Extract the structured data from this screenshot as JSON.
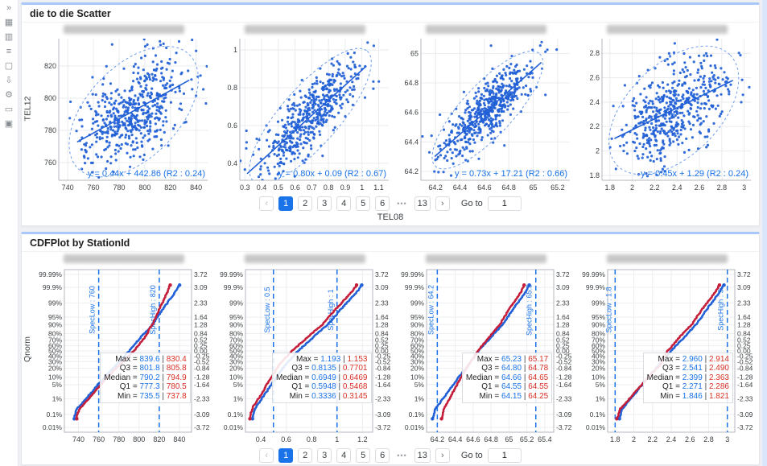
{
  "sidebar": {
    "icons": [
      {
        "name": "collapse-sidebar-icon",
        "glyph": "»"
      },
      {
        "name": "image-icon",
        "glyph": "▦"
      },
      {
        "name": "chart-columns-icon",
        "glyph": "▥"
      },
      {
        "name": "list-icon",
        "glyph": "≡"
      },
      {
        "name": "copy-icon",
        "glyph": "▢"
      },
      {
        "name": "download-icon",
        "glyph": "⇩"
      },
      {
        "name": "settings-icon",
        "glyph": "⚙"
      },
      {
        "name": "comment-icon",
        "glyph": "▭"
      },
      {
        "name": "grid-icon",
        "glyph": "▣"
      }
    ]
  },
  "panels": {
    "scatter": {
      "title": "die to die Scatter",
      "xlabel": "TEL08",
      "ylabel": "TEL12"
    },
    "cdf": {
      "title": "CDFPlot by StationId",
      "ylabel": "Qnorm"
    }
  },
  "pagination": {
    "prev": "‹",
    "next": "›",
    "pages": [
      "1",
      "2",
      "3",
      "4",
      "5",
      "6",
      "•••",
      "13"
    ],
    "active": "1",
    "goto_label": "Go to",
    "goto_value": "1"
  },
  "colors": {
    "accent_blue": "#1a73e8",
    "series_blue": "#2160d6",
    "series_red": "#c41e3a",
    "stat_red": "#d93025",
    "card_top_border": "#a8c7fa",
    "spec_line_blue": "#1a73e8"
  },
  "chart_data": {
    "qnorm_axis": {
      "percent_labels": [
        "99.99%",
        "99.9%",
        "99%",
        "95%",
        "90%",
        "80%",
        "70%",
        "60%",
        "50%",
        "40%",
        "30%",
        "20%",
        "10%",
        "5%",
        "1%",
        "0.1%",
        "0.01%"
      ],
      "z_values": [
        3.72,
        3.09,
        2.33,
        1.64,
        1.28,
        0.84,
        0.52,
        0.25,
        0.0,
        -0.25,
        -0.52,
        -0.84,
        -1.28,
        -1.64,
        -2.33,
        -3.09,
        -3.72
      ],
      "z_value_labels": [
        "3.72",
        "3.09",
        "2.33",
        "1.64",
        "1.28",
        "0.84",
        "0.52",
        "0.25",
        "0.00",
        "-0.25",
        "-0.52",
        "-0.84",
        "-1.28",
        "-1.64",
        "-2.33",
        "-3.09",
        "-3.72"
      ]
    },
    "charts": [
      {
        "id": "scatter-chart-1",
        "type": "scatter",
        "fit_label": "y = 0.44x + 442.86 (R2 : 0.24)",
        "fit": {
          "slope": 0.44,
          "intercept": 442.86,
          "r2": 0.24
        },
        "x_ticks": [
          740,
          760,
          780,
          800,
          820,
          840
        ],
        "y_ticks": [
          760,
          780,
          800,
          820
        ],
        "xlim": [
          733,
          849
        ],
        "ylim": [
          749,
          837
        ],
        "cloud": {
          "mx": 791,
          "sx": 19,
          "my": 792,
          "n": 520,
          "seed": 7
        }
      },
      {
        "id": "scatter-chart-2",
        "type": "scatter",
        "fit_label": "y = 0.80x + 0.09 (R2 : 0.67)",
        "fit": {
          "slope": 0.8,
          "intercept": 0.09,
          "r2": 0.67
        },
        "x_ticks": [
          0.3,
          0.4,
          0.5,
          0.6,
          0.7,
          0.8,
          0.9,
          1,
          1.1
        ],
        "y_ticks": [
          0.4,
          0.6,
          0.8,
          1
        ],
        "xlim": [
          0.27,
          1.16
        ],
        "ylim": [
          0.31,
          1.06
        ],
        "cloud": {
          "mx": 0.67,
          "sx": 0.155,
          "my": 0.63,
          "n": 500,
          "seed": 13
        }
      },
      {
        "id": "scatter-chart-3",
        "type": "scatter",
        "fit_label": "y = 0.73x + 17.21 (R2 : 0.66)",
        "fit": {
          "slope": 0.73,
          "intercept": 17.21,
          "r2": 0.66
        },
        "x_ticks": [
          64.2,
          64.4,
          64.6,
          64.8,
          65,
          65.2
        ],
        "y_ticks": [
          64.2,
          64.4,
          64.6,
          64.8,
          65
        ],
        "xlim": [
          64.08,
          65.3
        ],
        "ylim": [
          64.14,
          65.1
        ],
        "cloud": {
          "mx": 64.63,
          "sx": 0.19,
          "my": 64.62,
          "n": 520,
          "seed": 21
        }
      },
      {
        "id": "scatter-chart-4",
        "type": "scatter",
        "fit_label": "y = 0.45x + 1.29 (R2 : 0.24)",
        "fit": {
          "slope": 0.45,
          "intercept": 1.29,
          "r2": 0.24
        },
        "x_ticks": [
          1.8,
          2,
          2.2,
          2.4,
          2.6,
          2.8,
          3
        ],
        "y_ticks": [
          1.8,
          2,
          2.2,
          2.4,
          2.6,
          2.8
        ],
        "xlim": [
          1.73,
          3.06
        ],
        "ylim": [
          1.76,
          2.92
        ],
        "cloud": {
          "mx": 2.37,
          "sx": 0.23,
          "my": 2.34,
          "n": 520,
          "seed": 29
        }
      },
      {
        "id": "cdf-chart-1",
        "type": "cdf",
        "x_ticks": [
          740,
          760,
          780,
          800,
          820,
          840
        ],
        "xlim": [
          726,
          852
        ],
        "spec_low": {
          "label": "SpecLow : 760",
          "x": 760
        },
        "spec_high": {
          "label": "SpecHigh : 820",
          "x": 820
        },
        "series": [
          {
            "name": "series-blue",
            "color_key": "series_blue",
            "seed": 3,
            "stats": {
              "min": 735.5,
              "q1": 777.3,
              "median": 790.2,
              "q3": 801.8,
              "max": 839.6
            }
          },
          {
            "name": "series-red",
            "color_key": "series_red",
            "seed": 4,
            "stats": {
              "min": 737.8,
              "q1": 780.5,
              "median": 794.9,
              "q3": 805.8,
              "max": 830.4
            }
          }
        ],
        "stats_rows": [
          [
            "Max",
            "839.6",
            "830.4"
          ],
          [
            "Q3",
            "801.8",
            "805.8"
          ],
          [
            "Median",
            "790.2",
            "794.9"
          ],
          [
            "Q1",
            "777.3",
            "780.5"
          ],
          [
            "Min",
            "735.5",
            "737.8"
          ]
        ]
      },
      {
        "id": "cdf-chart-2",
        "type": "cdf",
        "x_ticks": [
          0.4,
          0.6,
          0.8,
          1,
          1.2
        ],
        "xlim": [
          0.28,
          1.28
        ],
        "spec_low": {
          "label": "SpecLow : 0.5",
          "x": 0.5
        },
        "spec_high": {
          "label": "SpecHigh : 1",
          "x": 1
        },
        "series": [
          {
            "name": "series-blue",
            "color_key": "series_blue",
            "seed": 5,
            "stats": {
              "min": 0.3336,
              "q1": 0.5948,
              "median": 0.6949,
              "q3": 0.8135,
              "max": 1.193
            }
          },
          {
            "name": "series-red",
            "color_key": "series_red",
            "seed": 6,
            "stats": {
              "min": 0.3145,
              "q1": 0.5468,
              "median": 0.6469,
              "q3": 0.7701,
              "max": 1.153
            }
          }
        ],
        "stats_rows": [
          [
            "Max",
            "1.193",
            "1.153"
          ],
          [
            "Q3",
            "0.8135",
            "0.7701"
          ],
          [
            "Median",
            "0.6949",
            "0.6469"
          ],
          [
            "Q1",
            "0.5948",
            "0.5468"
          ],
          [
            "Min",
            "0.3336",
            "0.3145"
          ]
        ]
      },
      {
        "id": "cdf-chart-3",
        "type": "cdf",
        "x_ticks": [
          64.2,
          64.4,
          64.6,
          64.8,
          65,
          65.2,
          65.4
        ],
        "xlim": [
          64.08,
          65.5
        ],
        "spec_low": {
          "label": "SpecLow : 64.2",
          "x": 64.2
        },
        "spec_high": {
          "label": "SpecHigh : 65.3",
          "x": 65.3
        },
        "series": [
          {
            "name": "series-blue",
            "color_key": "series_blue",
            "seed": 8,
            "stats": {
              "min": 64.15,
              "q1": 64.55,
              "median": 64.66,
              "q3": 64.8,
              "max": 65.23
            }
          },
          {
            "name": "series-red",
            "color_key": "series_red",
            "seed": 9,
            "stats": {
              "min": 64.25,
              "q1": 64.55,
              "median": 64.65,
              "q3": 64.78,
              "max": 65.17
            }
          }
        ],
        "stats_rows": [
          [
            "Max",
            "65.23",
            "65.17"
          ],
          [
            "Q3",
            "64.80",
            "64.78"
          ],
          [
            "Median",
            "64.66",
            "64.65"
          ],
          [
            "Q1",
            "64.55",
            "64.55"
          ],
          [
            "Min",
            "64.15",
            "64.25"
          ]
        ]
      },
      {
        "id": "cdf-chart-4",
        "type": "cdf",
        "x_ticks": [
          1.8,
          2,
          2.2,
          2.4,
          2.6,
          2.8,
          3
        ],
        "xlim": [
          1.72,
          3.08
        ],
        "spec_low": {
          "label": "SpecLow : 1.8",
          "x": 1.8
        },
        "spec_high": {
          "label": "SpecHigh : 3",
          "x": 3
        },
        "series": [
          {
            "name": "series-blue",
            "color_key": "series_blue",
            "seed": 11,
            "stats": {
              "min": 1.846,
              "q1": 2.271,
              "median": 2.399,
              "q3": 2.541,
              "max": 2.96
            }
          },
          {
            "name": "series-red",
            "color_key": "series_red",
            "seed": 12,
            "stats": {
              "min": 1.821,
              "q1": 2.286,
              "median": 2.363,
              "q3": 2.49,
              "max": 2.914
            }
          }
        ],
        "stats_rows": [
          [
            "Max",
            "2.960",
            "2.914"
          ],
          [
            "Q3",
            "2.541",
            "2.490"
          ],
          [
            "Median",
            "2.399",
            "2.363"
          ],
          [
            "Q1",
            "2.271",
            "2.286"
          ],
          [
            "Min",
            "1.846",
            "1.821"
          ]
        ]
      }
    ]
  }
}
